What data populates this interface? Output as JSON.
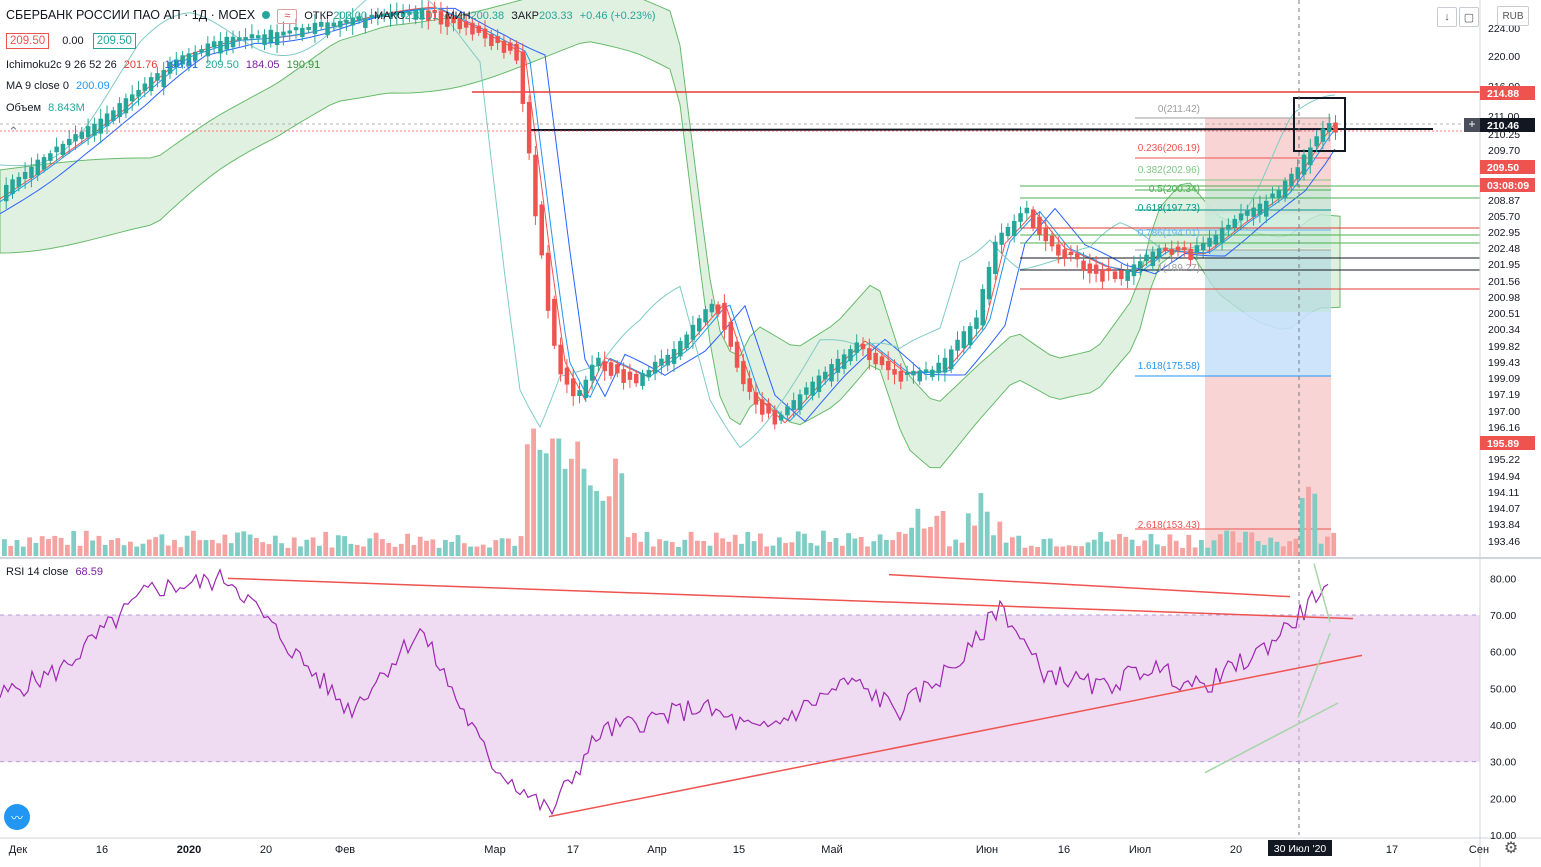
{
  "header": {
    "title": "СБЕРБАНК РОССИИ ПАО АП · 1Д · MOEX",
    "open_label": "ОТКР",
    "open": "203.00",
    "high_label": "МАКС",
    "high": "210.01",
    "low_label": "МИН",
    "low": "200.38",
    "close_label": "ЗАКР",
    "close": "203.33",
    "change": "+0.46 (+0.23%)",
    "bid": "209.50",
    "spread": "0.00",
    "ask": "209.50",
    "currency": "RUB"
  },
  "legend": {
    "ichimoku_name": "Ichimoku2c 9 26 52 26",
    "ichimoku_values": [
      "201.76",
      "198.01",
      "209.50",
      "184.05",
      "190.91"
    ],
    "ma_name": "MA 9 close 0",
    "ma_value": "200.09",
    "volume_name": "Объем",
    "volume_value": "8.843M",
    "rsi_name": "RSI 14 close",
    "rsi_value": "68.59"
  },
  "colors": {
    "up": "#26a69a",
    "down": "#ef5350",
    "cloud": "#c8e6c9",
    "rsi_line": "#9c27b0",
    "rsi_band": "#e1bee7",
    "fib_red": "#f8c9c9",
    "fib_blue": "#c8e1fb",
    "kijun": "#2962ff"
  },
  "price_axis": {
    "ticks": [
      "224.00",
      "220.00",
      "216.00",
      "211.00",
      "210.25",
      "209.70",
      "208.87",
      "205.70",
      "202.95",
      "202.48",
      "201.95",
      "201.56",
      "200.98",
      "200.51",
      "200.34",
      "199.82",
      "199.43",
      "199.09",
      "197.19",
      "197.00",
      "196.16",
      "195.74",
      "195.22",
      "194.94",
      "194.11",
      "194.07",
      "193.84",
      "193.46"
    ],
    "tags": [
      {
        "label": "214.88",
        "bg": "#ef5350",
        "fg": "#ffffff"
      },
      {
        "label": "210.46",
        "bg": "#131722",
        "fg": "#ffffff"
      },
      {
        "label": "209.50",
        "bg": "#ef5350",
        "fg": "#ffffff"
      },
      {
        "label": "03:08:09",
        "bg": "#ef5350",
        "fg": "#ffffff"
      },
      {
        "label": "195.89",
        "bg": "#ef5350",
        "fg": "#ffffff"
      }
    ]
  },
  "rsi_axis": {
    "ticks": [
      "80.00",
      "70.00",
      "60.00",
      "50.00",
      "40.00",
      "30.00",
      "20.00",
      "10.00"
    ]
  },
  "time_axis": {
    "labels": [
      "Дек",
      "16",
      "2020",
      "20",
      "Фев",
      "Мар",
      "17",
      "Апр",
      "15",
      "Май",
      "Июн",
      "16",
      "Июл",
      "20",
      "17",
      "Сен"
    ],
    "cursor_label": "30 Июл '20"
  },
  "fib_labels": [
    "0(211.42)",
    "0.236(206.19)",
    "0.382(202.96)",
    "0.5(200.34)",
    "0.618(197.73)",
    "0.786(194.01)",
    "1(189.27)",
    "1.618(175.58)",
    "2.618(153.43)"
  ],
  "chart_data": {
    "type": "candlestick",
    "title": "СБЕРБАНК РОССИИ ПАО АП",
    "x": [
      "Dec 2019",
      "Jan 2020",
      "Feb 2020",
      "Mar 2020",
      "Apr 2020",
      "May 2020",
      "Jun 2020",
      "Jul 2020",
      "Aug 2020"
    ],
    "monthly_close": [
      254,
      256,
      246,
      186,
      179,
      184,
      200,
      209.5,
      209.5
    ],
    "last": {
      "open": 203.0,
      "high": 210.01,
      "low": 200.38,
      "close": 203.33
    },
    "horizontal_levels": [
      214.88,
      210.46,
      209.5
    ],
    "fibonacci": {
      "0": 211.42,
      "0.236": 206.19,
      "0.382": 202.96,
      "0.5": 200.34,
      "0.618": 197.73,
      "0.786": 194.01,
      "1": 189.27,
      "1.618": 175.58,
      "2.618": 153.43
    },
    "rsi": {
      "period": 14,
      "value": 68.59,
      "upper": 70,
      "lower": 30,
      "ylim": [
        10,
        85
      ]
    }
  }
}
